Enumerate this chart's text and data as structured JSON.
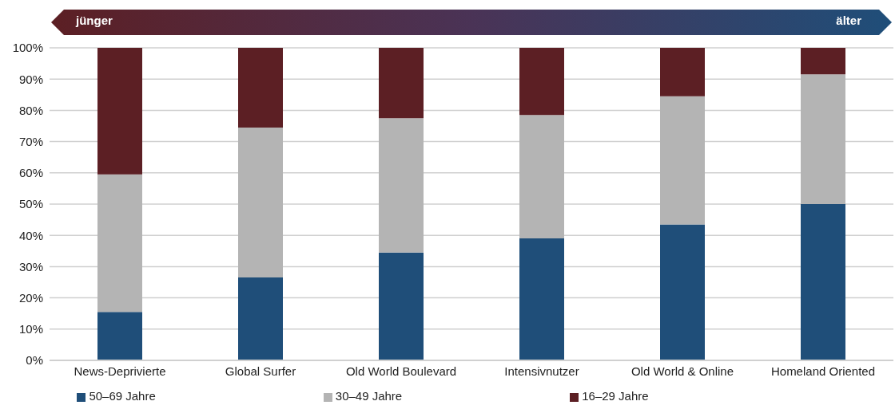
{
  "chart_data": {
    "type": "bar",
    "stacked": true,
    "categories": [
      "News-Deprivierte",
      "Global Surfer",
      "Old World Boulevard",
      "Intensivnutzer",
      "Old World & Online",
      "Homeland Oriented"
    ],
    "series": [
      {
        "name": "50–69 Jahre",
        "color": "#1f4e79",
        "values": [
          15.5,
          26.5,
          34.5,
          39,
          43.5,
          50
        ]
      },
      {
        "name": "30–49 Jahre",
        "color": "#b4b4b4",
        "values": [
          44,
          48,
          43,
          39.5,
          41,
          41.5
        ]
      },
      {
        "name": "16–29 Jahre",
        "color": "#5c1f24",
        "values": [
          40.5,
          25.5,
          22.5,
          21.5,
          15.5,
          8.5
        ]
      }
    ],
    "ylim": [
      0,
      100
    ],
    "yticks": [
      {
        "value": 0,
        "label": "0%"
      },
      {
        "value": 10,
        "label": "10%"
      },
      {
        "value": 20,
        "label": "20%"
      },
      {
        "value": 30,
        "label": "30%"
      },
      {
        "value": 40,
        "label": "40%"
      },
      {
        "value": 50,
        "label": "50%"
      },
      {
        "value": 60,
        "label": "60%"
      },
      {
        "value": 70,
        "label": "70%"
      },
      {
        "value": 80,
        "label": "80%"
      },
      {
        "value": 90,
        "label": "90%"
      },
      {
        "value": 100,
        "label": "100%"
      }
    ],
    "grid": "y",
    "legend": "bottom",
    "annotations": [
      "jünger",
      "älter"
    ]
  }
}
